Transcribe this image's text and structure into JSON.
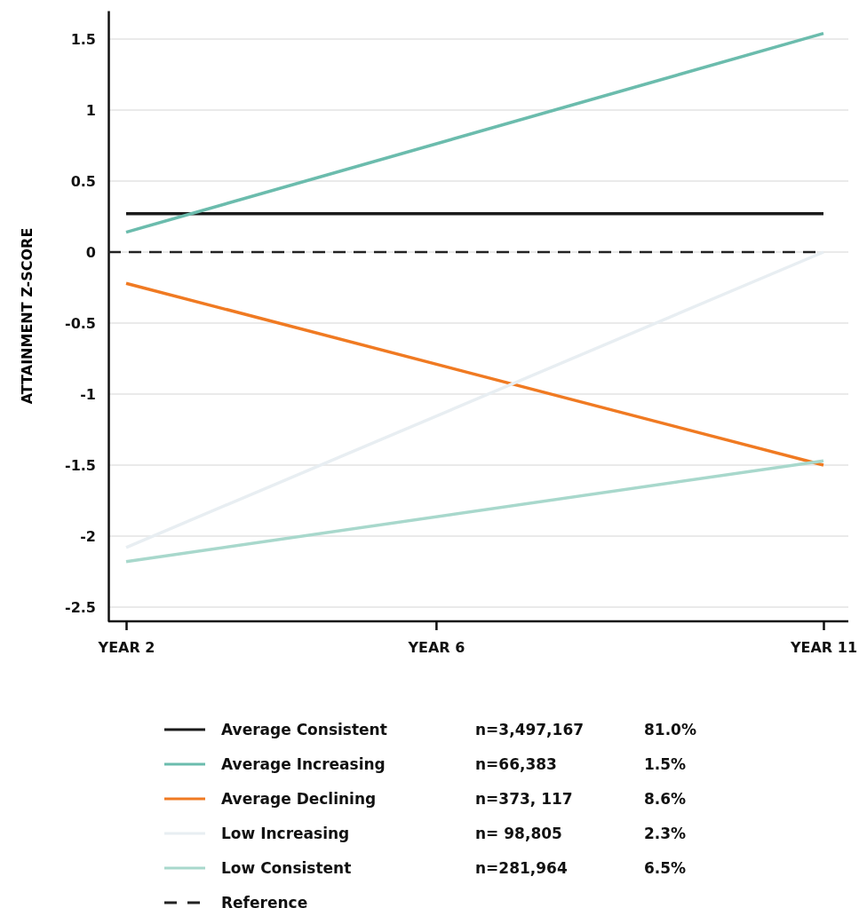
{
  "chart_data": {
    "type": "line",
    "ylabel": "ATTAINMENT Z-SCORE",
    "categories": [
      "YEAR 2",
      null,
      null,
      null,
      "YEAR 6",
      null,
      null,
      null,
      null,
      "YEAR 11"
    ],
    "ylim": [
      -2.6,
      1.7
    ],
    "yticks": [
      -2.5,
      -2,
      -1.5,
      -1,
      -0.5,
      0,
      0.5,
      1,
      1.5
    ],
    "grid": "y",
    "legend": "bottom",
    "line_style": "solid",
    "marker": "none",
    "series": [
      {
        "name": "Average Consistent",
        "color": "#1a1a1a",
        "values": [
          0.27,
          null,
          null,
          null,
          null,
          null,
          null,
          null,
          null,
          0.27
        ]
      },
      {
        "name": "Average Increasing",
        "color": "#6bbcad",
        "values": [
          0.14,
          null,
          null,
          null,
          null,
          null,
          null,
          null,
          null,
          1.54
        ]
      },
      {
        "name": "Average Declining",
        "color": "#f07a22",
        "values": [
          -0.22,
          null,
          null,
          null,
          null,
          null,
          null,
          null,
          null,
          -1.5
        ]
      },
      {
        "name": "Low Increasing",
        "color": "#e8eef2",
        "values": [
          -2.08,
          null,
          null,
          null,
          null,
          null,
          null,
          null,
          null,
          0
        ]
      },
      {
        "name": "Low Consistent",
        "color": "#a8d8cc",
        "values": [
          -2.18,
          null,
          null,
          null,
          null,
          null,
          null,
          null,
          null,
          -1.47
        ]
      }
    ],
    "ref_lines": [
      {
        "axis": "y",
        "value": 0,
        "label": "Reference",
        "color": "#222222",
        "line_style": "dashed"
      }
    ],
    "annotations": [
      "n=3,497,167",
      "81.0%",
      "n=66,383",
      "1.5%",
      "n=373, 117",
      "8.6%",
      "n= 98,805",
      "2.3%",
      "n=281,964",
      "6.5%"
    ]
  }
}
